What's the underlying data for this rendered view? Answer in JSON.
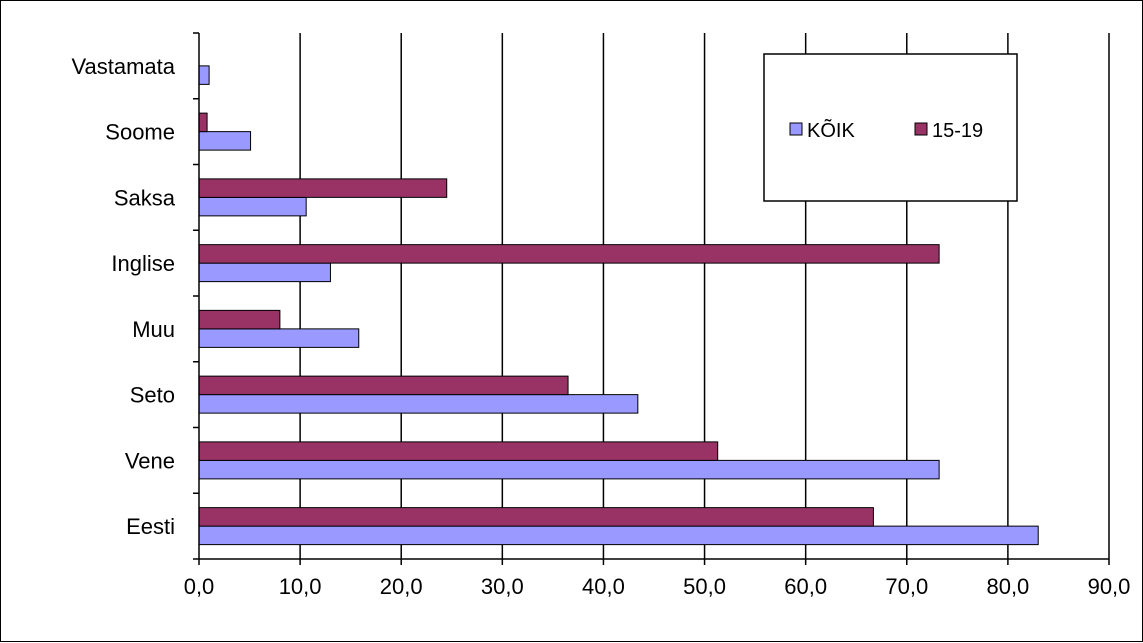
{
  "chart_data": {
    "type": "bar",
    "orientation": "horizontal",
    "categories": [
      "Eesti",
      "Vene",
      "Seto",
      "Muu",
      "Inglise",
      "Saksa",
      "Soome",
      "Vastamata"
    ],
    "series": [
      {
        "name": "KÕIK",
        "color": "#9999ff",
        "values": [
          83.0,
          73.2,
          43.4,
          15.8,
          13.0,
          10.6,
          5.1,
          1.0
        ]
      },
      {
        "name": "15-19",
        "color": "#993366",
        "values": [
          66.7,
          51.3,
          36.5,
          8.0,
          73.2,
          24.5,
          0.8,
          0.0
        ]
      }
    ],
    "xlim": [
      0,
      90
    ],
    "x_ticks": [
      "0,0",
      "10,0",
      "20,0",
      "30,0",
      "40,0",
      "50,0",
      "60,0",
      "70,0",
      "80,0",
      "90,0"
    ],
    "grid": "vertical major gridlines",
    "legend_position": "top-right"
  }
}
